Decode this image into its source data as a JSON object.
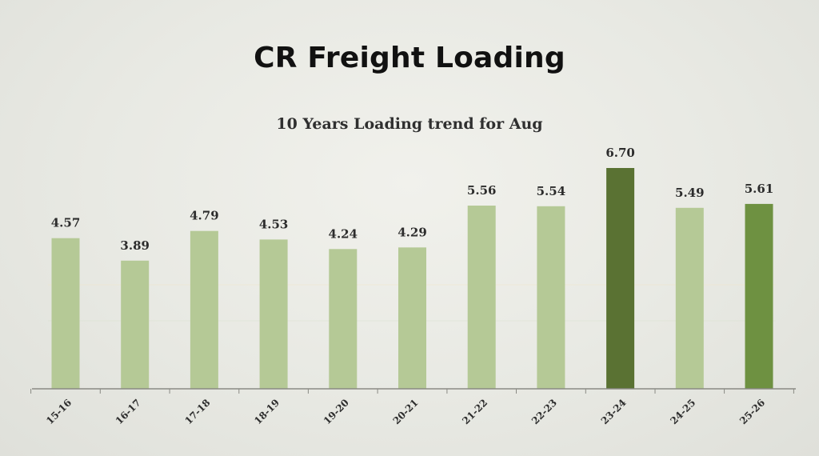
{
  "header": {
    "title": "CR Freight Loading"
  },
  "chart_data": {
    "type": "bar",
    "title": "10 Years Loading trend for Aug",
    "xlabel": "",
    "ylabel": "",
    "categories": [
      "15-16",
      "16-17",
      "17-18",
      "18-19",
      "19-20",
      "20-21",
      "21-22",
      "22-23",
      "23-24",
      "24-25",
      "25-26"
    ],
    "values": [
      4.57,
      3.89,
      4.79,
      4.53,
      4.24,
      4.29,
      5.56,
      5.54,
      6.7,
      5.49,
      5.61
    ],
    "data_labels": [
      "4.57",
      "3.89",
      "4.79",
      "4.53",
      "4.24",
      "4.29",
      "5.56",
      "5.54",
      "6.70",
      "5.49",
      "5.61"
    ],
    "ylim": [
      0,
      6.7
    ],
    "grid": false,
    "colors": {
      "default_bar": "#b5c996",
      "highlight_max": "#5a7233",
      "current_year": "#6e9141",
      "axis": "#8a8a84",
      "gridline": "#f1e6c8"
    },
    "bar_colors": [
      "#b5c996",
      "#b5c996",
      "#b5c996",
      "#b5c996",
      "#b5c996",
      "#b5c996",
      "#b5c996",
      "#b5c996",
      "#5a7233",
      "#b5c996",
      "#6e9141"
    ]
  }
}
